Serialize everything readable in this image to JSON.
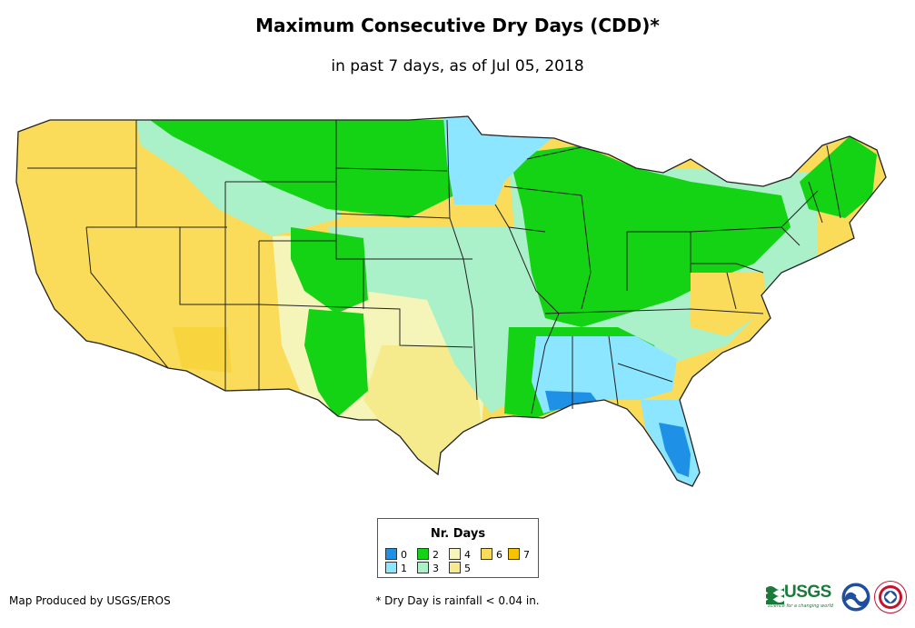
{
  "header": {
    "title": "Maximum Consecutive Dry Days (CDD)*",
    "subtitle": "in past 7 days, as of Jul 05, 2018"
  },
  "legend": {
    "title": "Nr. Days",
    "items": [
      {
        "label": "0",
        "color": "#1e90e6"
      },
      {
        "label": "1",
        "color": "#8ce6ff"
      },
      {
        "label": "2",
        "color": "#14d214"
      },
      {
        "label": "3",
        "color": "#aaf0c8"
      },
      {
        "label": "4",
        "color": "#f5f5b9"
      },
      {
        "label": "5",
        "color": "#f5eb8c"
      },
      {
        "label": "6",
        "color": "#fadc5a"
      },
      {
        "label": "7",
        "color": "#f5c300"
      }
    ]
  },
  "footer": {
    "credit": "Map Produced by USGS/EROS",
    "footnote": "* Dry Day is rainfall < 0.04 in.",
    "usgs_logo_text": "USGS",
    "usgs_tagline": "science for a changing world"
  },
  "icons": {
    "usgs": "usgs-logo-icon",
    "noaa": "noaa-logo-icon",
    "nws": "nws-logo-icon"
  }
}
